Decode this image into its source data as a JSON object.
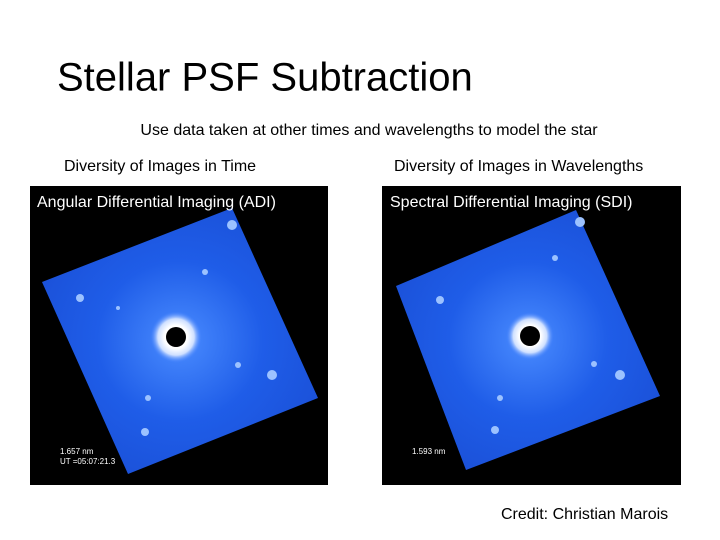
{
  "header": {
    "title": "Stellar PSF Subtraction",
    "subtitle": "Use data taken at other times and wavelengths to model the star"
  },
  "panels": [
    {
      "heading": "Diversity of Images in Time",
      "image_label": "Angular Differential Imaging (ADI)",
      "annotations": [
        "1.657 nm",
        "UT =05:07:21.3"
      ]
    },
    {
      "heading": "Diversity of Images in Wavelengths",
      "image_label": "Spectral Differential Imaging (SDI)",
      "annotations": [
        "1.593 nm"
      ]
    }
  ],
  "credit": "Credit: Christian Marois"
}
